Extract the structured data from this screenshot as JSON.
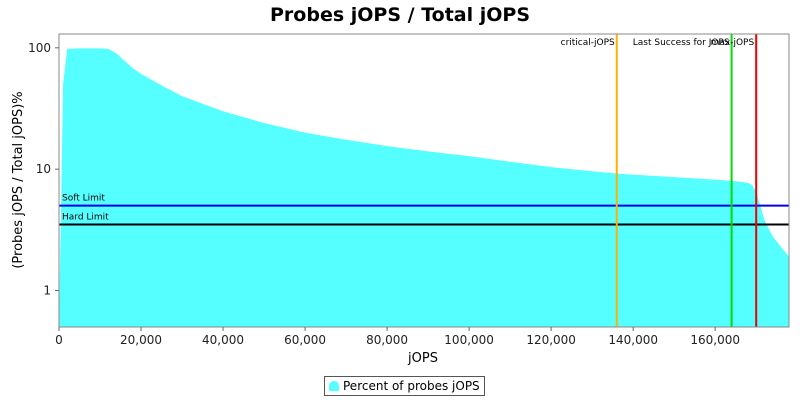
{
  "chart_data": {
    "type": "area",
    "title": "Probes jOPS / Total jOPS",
    "xlabel": "jOPS",
    "ylabel": "(Probes jOPS / Total jOPS)%",
    "y_scale": "log",
    "xlim": [
      0,
      178000
    ],
    "ylim": [
      0.5,
      130
    ],
    "x_ticks": [
      0,
      20000,
      40000,
      60000,
      80000,
      100000,
      120000,
      140000,
      160000
    ],
    "x_tick_labels": [
      "0",
      "20,000",
      "40,000",
      "60,000",
      "80,000",
      "100,000",
      "120,000",
      "140,000",
      "160,000"
    ],
    "y_ticks": [
      1,
      10,
      100
    ],
    "y_tick_labels": [
      "1",
      "10",
      "100"
    ],
    "grid": false,
    "legend_position": "bottom",
    "series": [
      {
        "name": "Percent of probes jOPS",
        "color": "#55ffff",
        "x": [
          0,
          1000,
          2000,
          5000,
          10000,
          12000,
          14000,
          16000,
          18000,
          20000,
          25000,
          30000,
          40000,
          50000,
          60000,
          70000,
          80000,
          90000,
          100000,
          110000,
          120000,
          130000,
          136000,
          140000,
          150000,
          160000,
          164000,
          166000,
          168000,
          169000,
          170000,
          171000,
          172000,
          174000,
          176000,
          178000
        ],
        "values": [
          0.5,
          50,
          98,
          99,
          99,
          98,
          90,
          78,
          68,
          61,
          49,
          40,
          30,
          24,
          20,
          17.5,
          15.5,
          14,
          12.8,
          11.5,
          10.4,
          9.6,
          9.2,
          9.0,
          8.6,
          8.2,
          8.0,
          7.9,
          7.7,
          7.4,
          6.5,
          5.0,
          3.8,
          2.8,
          2.3,
          1.9
        ]
      }
    ],
    "vertical_markers": [
      {
        "label": "critical-jOPS",
        "x": 136000,
        "color": "#ffb000"
      },
      {
        "label": "Last Success for JOPS",
        "x": 164000,
        "color": "#00dd00"
      },
      {
        "label": "max-jOPS",
        "x": 170000,
        "color": "#ee0000"
      }
    ],
    "horizontal_markers": [
      {
        "label": "Soft Limit",
        "y": 5,
        "color": "#0000ee"
      },
      {
        "label": "Hard Limit",
        "y": 3.5,
        "color": "#000000"
      }
    ]
  },
  "legend": {
    "label": "Percent of probes jOPS"
  }
}
